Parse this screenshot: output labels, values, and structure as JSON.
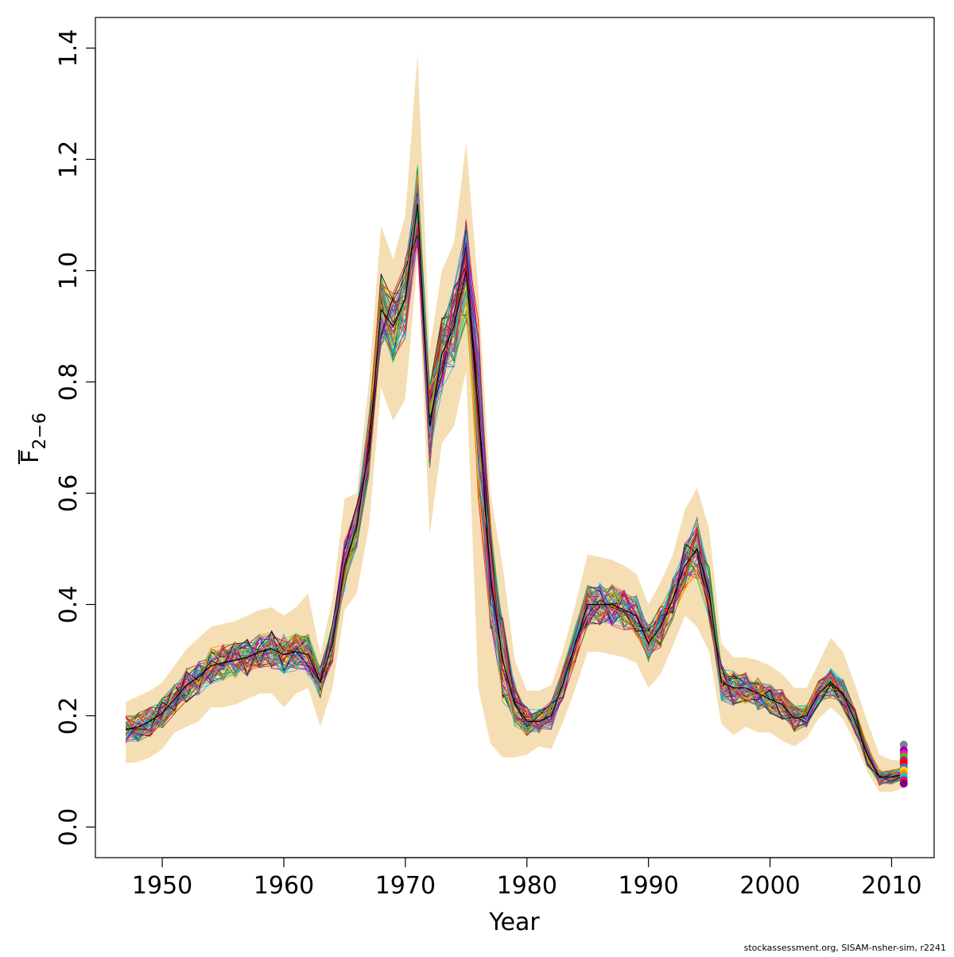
{
  "chart_data": {
    "type": "line",
    "xlabel": "Year",
    "ylabel": {
      "main": "F",
      "subscript": "2−6",
      "overline": true
    },
    "xlim": [
      1944.5,
      2013.5
    ],
    "ylim": [
      -0.055,
      1.455
    ],
    "x_ticks": [
      1950,
      1960,
      1970,
      1980,
      1990,
      2000,
      2010
    ],
    "x_tick_labels": [
      "1950",
      "1960",
      "1970",
      "1980",
      "1990",
      "2000",
      "2010"
    ],
    "y_ticks": [
      0.0,
      0.2,
      0.4,
      0.6,
      0.8,
      1.0,
      1.2,
      1.4
    ],
    "y_tick_labels": [
      "0.0",
      "0.2",
      "0.4",
      "0.6",
      "0.8",
      "1.0",
      "1.2",
      "1.4"
    ],
    "grid": false,
    "legend": "none",
    "years": [
      1947,
      1948,
      1949,
      1950,
      1951,
      1952,
      1953,
      1954,
      1955,
      1956,
      1957,
      1958,
      1959,
      1960,
      1961,
      1962,
      1963,
      1964,
      1965,
      1966,
      1967,
      1968,
      1969,
      1970,
      1971,
      1972,
      1973,
      1974,
      1975,
      1976,
      1977,
      1978,
      1979,
      1980,
      1981,
      1982,
      1983,
      1984,
      1985,
      1986,
      1987,
      1988,
      1989,
      1990,
      1991,
      1992,
      1993,
      1994,
      1995,
      1996,
      1997,
      1998,
      1999,
      2000,
      2001,
      2002,
      2003,
      2004,
      2005,
      2006,
      2007,
      2008,
      2009,
      2010,
      2011
    ],
    "central_estimate": [
      0.175,
      0.18,
      0.19,
      0.205,
      0.23,
      0.255,
      0.27,
      0.29,
      0.295,
      0.3,
      0.305,
      0.315,
      0.32,
      0.31,
      0.315,
      0.31,
      0.26,
      0.33,
      0.47,
      0.54,
      0.68,
      0.93,
      0.9,
      0.95,
      1.12,
      0.72,
      0.85,
      0.9,
      1.0,
      0.75,
      0.45,
      0.3,
      0.22,
      0.19,
      0.19,
      0.2,
      0.26,
      0.33,
      0.4,
      0.4,
      0.4,
      0.39,
      0.38,
      0.33,
      0.36,
      0.41,
      0.47,
      0.5,
      0.42,
      0.26,
      0.25,
      0.25,
      0.24,
      0.23,
      0.22,
      0.195,
      0.2,
      0.24,
      0.26,
      0.24,
      0.19,
      0.13,
      0.09,
      0.09,
      0.095
    ],
    "confidence_band": {
      "lower": [
        0.115,
        0.117,
        0.125,
        0.14,
        0.17,
        0.18,
        0.19,
        0.215,
        0.215,
        0.22,
        0.23,
        0.24,
        0.24,
        0.215,
        0.24,
        0.25,
        0.18,
        0.25,
        0.39,
        0.42,
        0.54,
        0.79,
        0.73,
        0.77,
        1.02,
        0.525,
        0.69,
        0.72,
        0.82,
        0.25,
        0.15,
        0.125,
        0.125,
        0.13,
        0.145,
        0.14,
        0.19,
        0.25,
        0.315,
        0.315,
        0.31,
        0.305,
        0.295,
        0.25,
        0.275,
        0.325,
        0.38,
        0.36,
        0.315,
        0.185,
        0.165,
        0.18,
        0.17,
        0.17,
        0.155,
        0.145,
        0.16,
        0.195,
        0.215,
        0.195,
        0.15,
        0.1,
        0.063,
        0.063,
        0.07
      ],
      "upper": [
        0.225,
        0.235,
        0.245,
        0.26,
        0.29,
        0.32,
        0.34,
        0.36,
        0.365,
        0.37,
        0.38,
        0.39,
        0.395,
        0.38,
        0.395,
        0.42,
        0.31,
        0.41,
        0.59,
        0.6,
        0.8,
        1.08,
        1.02,
        1.1,
        1.39,
        0.86,
        1.0,
        1.05,
        1.23,
        0.97,
        0.6,
        0.47,
        0.3,
        0.245,
        0.245,
        0.255,
        0.32,
        0.4,
        0.49,
        0.485,
        0.48,
        0.47,
        0.455,
        0.4,
        0.44,
        0.49,
        0.57,
        0.61,
        0.535,
        0.33,
        0.305,
        0.305,
        0.3,
        0.29,
        0.275,
        0.25,
        0.25,
        0.295,
        0.34,
        0.315,
        0.255,
        0.19,
        0.13,
        0.12,
        0.12
      ]
    },
    "colors": {
      "band": "#f5deb3",
      "series_palette": [
        "#000000",
        "#dc143c",
        "#9400d3",
        "#ff8c00",
        "#228b22",
        "#00bfff",
        "#ffd700",
        "#8b4513",
        "#ff1493",
        "#808080",
        "#4169e1",
        "#32cd32",
        "#b22222",
        "#00ced1"
      ],
      "endpoint_palette": [
        "#808080",
        "#9400d3",
        "#ff1493",
        "#32cd32",
        "#dc143c",
        "#ff0000",
        "#4169e1",
        "#ffd700",
        "#ff8c00",
        "#00bfff",
        "#dc143c",
        "#800080"
      ]
    },
    "endpoint_values": [
      0.148,
      0.138,
      0.132,
      0.126,
      0.12,
      0.114,
      0.108,
      0.102,
      0.096,
      0.09,
      0.084,
      0.078
    ]
  },
  "credit": "stockassessment.org, SISAM-nsher-sim, r2241"
}
